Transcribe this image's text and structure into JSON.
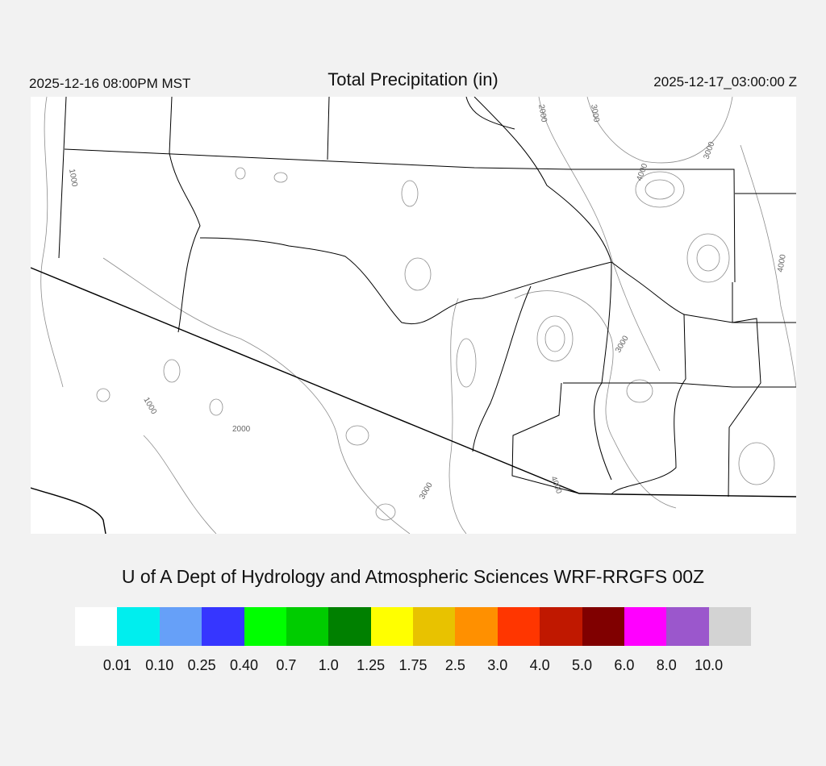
{
  "header": {
    "local_time": "2025-12-16 08:00PM MST",
    "title": "Total Precipitation (in)",
    "valid_time": "2025-12-17_03:00:00 Z"
  },
  "map": {
    "contour_labels": [
      "1000",
      "1000",
      "2000",
      "2000",
      "3000",
      "3000",
      "3000",
      "3000",
      "4000",
      "4000",
      "4000"
    ],
    "line_colors": {
      "boundary": "#000000",
      "contour": "#8c8c8c"
    }
  },
  "credit": "U of A Dept of Hydrology and Atmospheric Sciences WRF-RRGFS 00Z",
  "colorbar": {
    "colors": [
      "#ffffff",
      "#00eeee",
      "#66a0f8",
      "#3636ff",
      "#00ff00",
      "#00cc00",
      "#008000",
      "#ffff00",
      "#e8c200",
      "#ff9000",
      "#ff3600",
      "#c01800",
      "#800000",
      "#ff00ff",
      "#9b57cc",
      "#d3d3d3"
    ],
    "labels": [
      "0.01",
      "0.10",
      "0.25",
      "0.40",
      "0.7",
      "1.0",
      "1.25",
      "1.75",
      "2.5",
      "3.0",
      "4.0",
      "5.0",
      "6.0",
      "8.0",
      "10.0"
    ]
  }
}
